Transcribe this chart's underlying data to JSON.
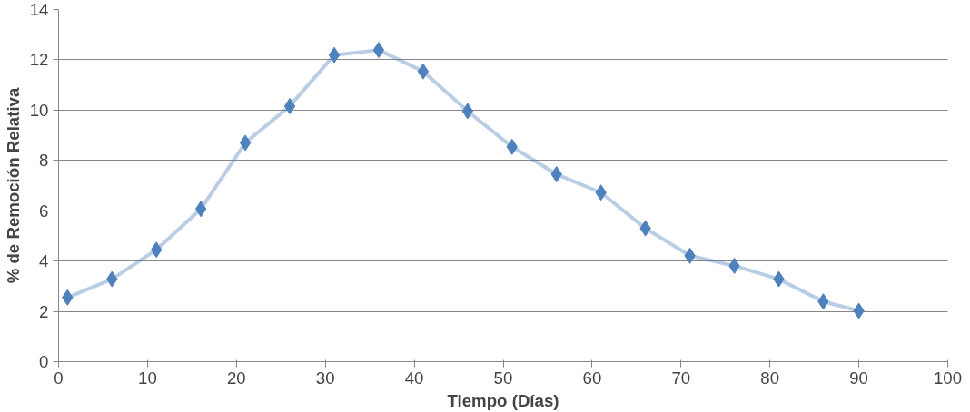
{
  "chart_data": {
    "type": "line",
    "xlabel": "Tiempo (Días)",
    "ylabel": "% de Remoción Relativa",
    "x": [
      1,
      6,
      11,
      16,
      21,
      26,
      31,
      36,
      41,
      46,
      51,
      56,
      61,
      66,
      71,
      76,
      81,
      86,
      90
    ],
    "series": [
      {
        "color": "#4f81bd",
        "values": [
          2.55,
          3.28,
          4.45,
          6.07,
          8.7,
          10.16,
          12.19,
          12.39,
          11.54,
          9.96,
          8.54,
          7.45,
          6.72,
          5.3,
          4.21,
          3.81,
          3.28,
          2.39,
          2.02
        ]
      }
    ],
    "xlim": [
      0,
      100
    ],
    "xticks": [
      0,
      10,
      20,
      30,
      40,
      50,
      60,
      70,
      80,
      90,
      100
    ],
    "ylim": [
      0,
      14
    ],
    "yticks": [
      0,
      2,
      4,
      6,
      8,
      10,
      12,
      14
    ],
    "grid": "y",
    "marker": "diamond",
    "line_style": "solid"
  }
}
